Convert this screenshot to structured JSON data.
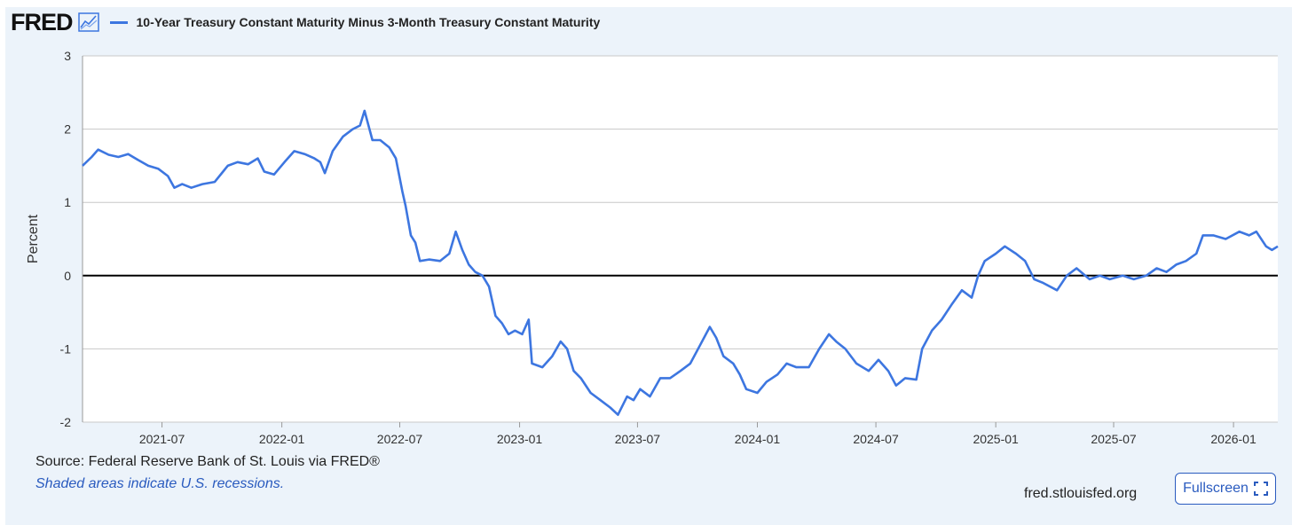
{
  "header": {
    "logo": "FRED",
    "logo_icon": "trend-chart-icon",
    "series_title": "10-Year Treasury Constant Maturity Minus 3-Month Treasury Constant Maturity"
  },
  "footer": {
    "source": "Source: Federal Reserve Bank of St. Louis via FRED®",
    "note": "Shaded areas indicate U.S. recessions.",
    "site": "fred.stlouisfed.org",
    "fullscreen_label": "Fullscreen",
    "fullscreen_icon": "fullscreen-icon"
  },
  "colors": {
    "series": "#3d76e0",
    "background": "#ecf3fa",
    "plot_background": "#ffffff",
    "grid": "#c8c8c8",
    "zero_line": "#000000",
    "link": "#2a5bbf"
  },
  "chart_data": {
    "type": "line",
    "title": "10-Year Treasury Constant Maturity Minus 3-Month Treasury Constant Maturity",
    "ylabel": "Percent",
    "xlabel": "",
    "ylim": [
      -2,
      3
    ],
    "yticks": [
      -2,
      -1,
      0,
      1,
      2,
      3
    ],
    "xlim": [
      "2021-03-01",
      "2026-03-10"
    ],
    "xticks": [
      "2021-07",
      "2022-01",
      "2022-07",
      "2023-01",
      "2023-07",
      "2024-01",
      "2024-07",
      "2025-01",
      "2025-07",
      "2026-01"
    ],
    "grid": true,
    "legend": "top-left",
    "series": [
      {
        "name": "10-Year Treasury Constant Maturity Minus 3-Month Treasury Constant Maturity",
        "points": [
          [
            "2021-03-01",
            1.5
          ],
          [
            "2021-03-15",
            1.62
          ],
          [
            "2021-03-25",
            1.72
          ],
          [
            "2021-04-10",
            1.65
          ],
          [
            "2021-04-25",
            1.62
          ],
          [
            "2021-05-10",
            1.66
          ],
          [
            "2021-05-25",
            1.58
          ],
          [
            "2021-06-10",
            1.5
          ],
          [
            "2021-06-25",
            1.46
          ],
          [
            "2021-07-10",
            1.36
          ],
          [
            "2021-07-20",
            1.2
          ],
          [
            "2021-08-01",
            1.25
          ],
          [
            "2021-08-15",
            1.2
          ],
          [
            "2021-09-01",
            1.25
          ],
          [
            "2021-09-20",
            1.28
          ],
          [
            "2021-10-10",
            1.5
          ],
          [
            "2021-10-25",
            1.55
          ],
          [
            "2021-11-10",
            1.52
          ],
          [
            "2021-11-25",
            1.6
          ],
          [
            "2021-12-05",
            1.42
          ],
          [
            "2021-12-20",
            1.38
          ],
          [
            "2022-01-05",
            1.55
          ],
          [
            "2022-01-20",
            1.7
          ],
          [
            "2022-02-05",
            1.66
          ],
          [
            "2022-02-20",
            1.6
          ],
          [
            "2022-03-01",
            1.55
          ],
          [
            "2022-03-08",
            1.4
          ],
          [
            "2022-03-20",
            1.7
          ],
          [
            "2022-04-05",
            1.9
          ],
          [
            "2022-04-20",
            2.0
          ],
          [
            "2022-05-01",
            2.05
          ],
          [
            "2022-05-08",
            2.25
          ],
          [
            "2022-05-20",
            1.85
          ],
          [
            "2022-06-01",
            1.85
          ],
          [
            "2022-06-15",
            1.75
          ],
          [
            "2022-06-25",
            1.6
          ],
          [
            "2022-07-05",
            1.15
          ],
          [
            "2022-07-10",
            0.95
          ],
          [
            "2022-07-18",
            0.55
          ],
          [
            "2022-07-25",
            0.45
          ],
          [
            "2022-08-01",
            0.2
          ],
          [
            "2022-08-15",
            0.22
          ],
          [
            "2022-09-01",
            0.2
          ],
          [
            "2022-09-15",
            0.3
          ],
          [
            "2022-09-25",
            0.6
          ],
          [
            "2022-10-05",
            0.35
          ],
          [
            "2022-10-15",
            0.15
          ],
          [
            "2022-10-25",
            0.05
          ],
          [
            "2022-11-05",
            0.0
          ],
          [
            "2022-11-15",
            -0.15
          ],
          [
            "2022-11-25",
            -0.55
          ],
          [
            "2022-12-05",
            -0.65
          ],
          [
            "2022-12-15",
            -0.8
          ],
          [
            "2022-12-25",
            -0.75
          ],
          [
            "2023-01-05",
            -0.8
          ],
          [
            "2023-01-15",
            -0.6
          ],
          [
            "2023-01-20",
            -1.2
          ],
          [
            "2023-02-05",
            -1.25
          ],
          [
            "2023-02-20",
            -1.1
          ],
          [
            "2023-03-05",
            -0.9
          ],
          [
            "2023-03-15",
            -1.0
          ],
          [
            "2023-03-25",
            -1.3
          ],
          [
            "2023-04-05",
            -1.4
          ],
          [
            "2023-04-20",
            -1.6
          ],
          [
            "2023-05-05",
            -1.7
          ],
          [
            "2023-05-20",
            -1.8
          ],
          [
            "2023-06-01",
            -1.9
          ],
          [
            "2023-06-15",
            -1.65
          ],
          [
            "2023-06-25",
            -1.7
          ],
          [
            "2023-07-05",
            -1.55
          ],
          [
            "2023-07-20",
            -1.65
          ],
          [
            "2023-08-05",
            -1.4
          ],
          [
            "2023-08-20",
            -1.4
          ],
          [
            "2023-09-05",
            -1.3
          ],
          [
            "2023-09-20",
            -1.2
          ],
          [
            "2023-10-05",
            -0.95
          ],
          [
            "2023-10-20",
            -0.7
          ],
          [
            "2023-10-30",
            -0.85
          ],
          [
            "2023-11-10",
            -1.1
          ],
          [
            "2023-11-25",
            -1.2
          ],
          [
            "2023-12-05",
            -1.35
          ],
          [
            "2023-12-15",
            -1.55
          ],
          [
            "2024-01-01",
            -1.6
          ],
          [
            "2024-01-15",
            -1.45
          ],
          [
            "2024-02-01",
            -1.35
          ],
          [
            "2024-02-15",
            -1.2
          ],
          [
            "2024-03-01",
            -1.25
          ],
          [
            "2024-03-20",
            -1.25
          ],
          [
            "2024-04-05",
            -1.0
          ],
          [
            "2024-04-20",
            -0.8
          ],
          [
            "2024-05-01",
            -0.9
          ],
          [
            "2024-05-15",
            -1.0
          ],
          [
            "2024-06-01",
            -1.2
          ],
          [
            "2024-06-20",
            -1.3
          ],
          [
            "2024-07-05",
            -1.15
          ],
          [
            "2024-07-20",
            -1.3
          ],
          [
            "2024-08-01",
            -1.5
          ],
          [
            "2024-08-15",
            -1.4
          ],
          [
            "2024-09-01",
            -1.42
          ],
          [
            "2024-09-10",
            -1.0
          ],
          [
            "2024-09-25",
            -0.75
          ],
          [
            "2024-10-10",
            -0.6
          ],
          [
            "2024-10-25",
            -0.4
          ],
          [
            "2024-11-10",
            -0.2
          ],
          [
            "2024-11-25",
            -0.3
          ],
          [
            "2024-12-05",
            0.0
          ],
          [
            "2024-12-15",
            0.2
          ],
          [
            "2025-01-01",
            0.3
          ],
          [
            "2025-01-15",
            0.4
          ],
          [
            "2025-02-01",
            0.3
          ],
          [
            "2025-02-15",
            0.2
          ],
          [
            "2025-03-01",
            -0.05
          ],
          [
            "2025-03-15",
            -0.1
          ],
          [
            "2025-04-05",
            -0.2
          ],
          [
            "2025-04-20",
            0.0
          ],
          [
            "2025-05-05",
            0.1
          ],
          [
            "2025-05-25",
            -0.05
          ],
          [
            "2025-06-10",
            0.0
          ],
          [
            "2025-06-25",
            -0.05
          ],
          [
            "2025-07-15",
            0.0
          ],
          [
            "2025-08-01",
            -0.05
          ],
          [
            "2025-08-20",
            0.0
          ],
          [
            "2025-09-05",
            0.1
          ],
          [
            "2025-09-20",
            0.05
          ],
          [
            "2025-10-05",
            0.15
          ],
          [
            "2025-10-20",
            0.2
          ],
          [
            "2025-11-05",
            0.3
          ],
          [
            "2025-11-15",
            0.55
          ],
          [
            "2025-12-01",
            0.55
          ],
          [
            "2025-12-20",
            0.5
          ],
          [
            "2026-01-10",
            0.6
          ],
          [
            "2026-01-25",
            0.55
          ],
          [
            "2026-02-05",
            0.6
          ],
          [
            "2026-02-20",
            0.4
          ],
          [
            "2026-03-01",
            0.35
          ],
          [
            "2026-03-10",
            0.4
          ]
        ]
      }
    ]
  }
}
